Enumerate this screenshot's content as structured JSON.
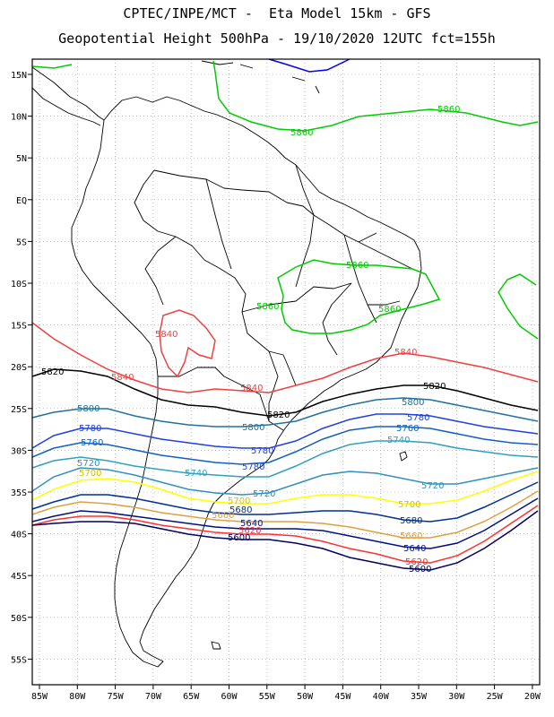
{
  "header": {
    "line1": "CPTEC/INPE/MCT -  Eta Model 15km - GFS",
    "line2": "Geopotential Height 500hPa - 19/10/2020 12UTC fct=155h"
  },
  "axes": {
    "lon_labels": [
      "85W",
      "80W",
      "75W",
      "70W",
      "65W",
      "60W",
      "55W",
      "50W",
      "45W",
      "40W",
      "35W",
      "30W",
      "25W",
      "20W"
    ],
    "lat_labels": [
      "15N",
      "10N",
      "5N",
      "EQ",
      "5S",
      "10S",
      "15S",
      "20S",
      "25S",
      "30S",
      "35S",
      "40S",
      "45S",
      "50S",
      "55S"
    ]
  },
  "colors": {
    "c5580": "#0000ff",
    "c5600": "#000060",
    "c5620": "#ff3030",
    "c5640": "#001080",
    "c5660": "#e0a040",
    "c5680": "#003090",
    "c5700": "#ffff00",
    "c5720": "#3090c0",
    "c5740": "#30a0c0",
    "c5760": "#1060c0",
    "c5780": "#2040e0",
    "c5800": "#2070a0",
    "c5820": "#000000",
    "c5840": "#f04040",
    "c5860": "#00cc00"
  },
  "contours": [
    {
      "value": "5860",
      "color": "#00cc00",
      "labels": [
        "5860",
        "5860",
        "5860",
        "5860",
        "5860"
      ]
    },
    {
      "value": "5840",
      "color": "#f04040",
      "labels": [
        "5840",
        "5840",
        "5840",
        "5840"
      ]
    },
    {
      "value": "5820",
      "color": "#000000",
      "labels": [
        "5820",
        "5820",
        "5820"
      ]
    },
    {
      "value": "5800",
      "color": "#2070a0",
      "labels": [
        "5800",
        "5800",
        "5800"
      ]
    },
    {
      "value": "5780",
      "color": "#2040e0",
      "labels": [
        "5780",
        "5780",
        "5780",
        "5780"
      ]
    },
    {
      "value": "5760",
      "color": "#1060c0",
      "labels": [
        "5760",
        "5760"
      ]
    },
    {
      "value": "5740",
      "color": "#30a0c0",
      "labels": [
        "5740",
        "5740"
      ]
    },
    {
      "value": "5720",
      "color": "#3090c0",
      "labels": [
        "5720",
        "5720",
        "5720"
      ]
    },
    {
      "value": "5700",
      "color": "#ffff00",
      "labels": [
        "5700",
        "5700",
        "5700"
      ]
    },
    {
      "value": "5680",
      "color": "#003090",
      "labels": [
        "5680",
        "5680"
      ]
    },
    {
      "value": "5660",
      "color": "#e0a040",
      "labels": [
        "5660",
        "5660"
      ]
    },
    {
      "value": "5640",
      "color": "#001080",
      "labels": [
        "5640",
        "5640"
      ]
    },
    {
      "value": "5620",
      "color": "#ff3030",
      "labels": [
        "5620",
        "5620"
      ]
    },
    {
      "value": "5600",
      "color": "#000060",
      "labels": [
        "5600",
        "5600"
      ]
    },
    {
      "value": "5580",
      "color": "#0000ff",
      "labels": []
    }
  ]
}
